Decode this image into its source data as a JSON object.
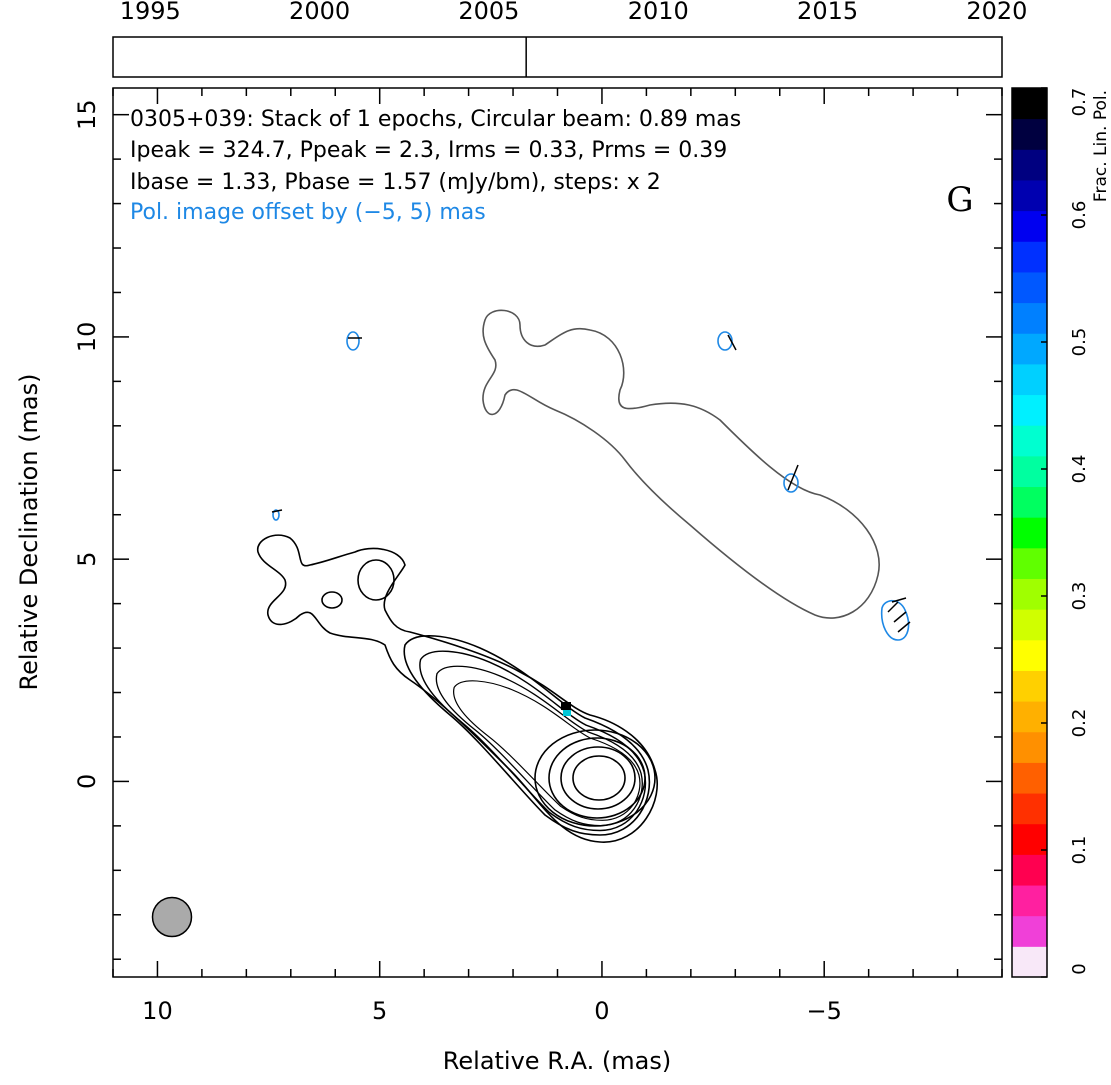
{
  "chart_data": {
    "type": "contour",
    "title_lines": [
      "0305+039: Stack of 1 epochs, Circular beam: 0.89 mas",
      "Ipeak = 324.7, Ppeak = 2.3, Irms = 0.33, Prms = 0.39",
      "Ibase = 1.33, Pbase = 1.57 (mJy/bm), steps: x 2"
    ],
    "note": "Pol. image offset by (−5, 5) mas",
    "note_color": "#1e88e5",
    "panel_label": "G",
    "xlabel": "Relative R.A. (mas)",
    "ylabel": "Relative Declination (mas)",
    "xlim": [
      11,
      -9
    ],
    "ylim": [
      -4.4,
      15.6
    ],
    "xticks": [
      10,
      5,
      0,
      {
        "value": -5,
        "label": "−5"
      }
    ],
    "yticks": [
      0,
      5,
      10,
      15
    ],
    "xminorticks": [
      11,
      9,
      8,
      7,
      6,
      4,
      3,
      2,
      1,
      -1,
      -2,
      -3,
      -4,
      -6,
      -7,
      -8,
      -9
    ],
    "yminorticks": [
      -4,
      -3,
      -2,
      -1,
      1,
      2,
      3,
      4,
      6,
      7,
      8,
      9,
      11,
      12,
      13,
      14
    ],
    "time_axis": {
      "xlim": [
        1993.9,
        2020.15
      ],
      "xticks": [
        1995,
        2000,
        2005,
        2010,
        2015,
        2020
      ],
      "epochs": [
        2006.1
      ]
    },
    "colorbar": {
      "label": "Frac. Lin. Pol.",
      "lim": [
        0,
        0.7
      ],
      "ticks": [
        0,
        0.1,
        0.2,
        0.3,
        0.4,
        0.5,
        0.6,
        0.7
      ],
      "colors": [
        "#f8e8f8",
        "#f040d8",
        "#ff20a0",
        "#ff0050",
        "#ff0000",
        "#ff3000",
        "#ff6000",
        "#ff9000",
        "#ffb000",
        "#ffd000",
        "#ffff00",
        "#d0ff00",
        "#a0ff00",
        "#60ff00",
        "#00ff00",
        "#00ff60",
        "#00ffa0",
        "#00ffd0",
        "#00f0ff",
        "#00d0ff",
        "#00a8ff",
        "#0080ff",
        "#0058ff",
        "#0030ff",
        "#0000f0",
        "#0000b0",
        "#000080",
        "#000040",
        "#000000"
      ]
    }
  }
}
